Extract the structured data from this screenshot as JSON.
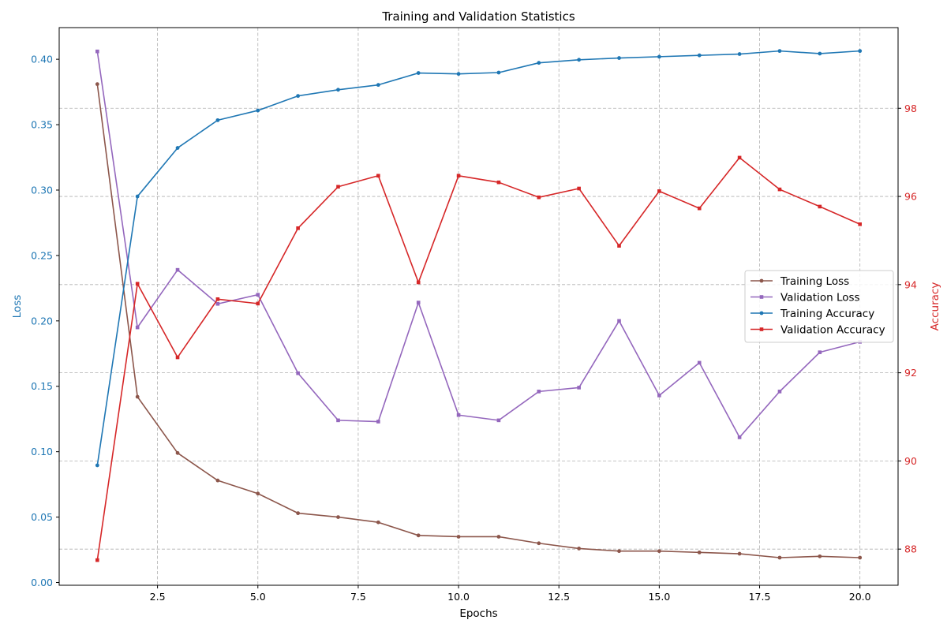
{
  "chart_data": {
    "type": "line",
    "title": "Training and Validation Statistics",
    "xlabel": "Epochs",
    "ylabel_left": "Loss",
    "ylabel_right": "Accuracy",
    "x": [
      1,
      2,
      3,
      4,
      5,
      6,
      7,
      8,
      9,
      10,
      11,
      12,
      13,
      14,
      15,
      16,
      17,
      18,
      19,
      20
    ],
    "xlim": [
      0.05,
      20.95
    ],
    "xticks": [
      2.5,
      5.0,
      7.5,
      10.0,
      12.5,
      15.0,
      17.5,
      20.0
    ],
    "ylim_left": [
      -0.0021,
      0.4242
    ],
    "yticks_left": [
      0.0,
      0.05,
      0.1,
      0.15,
      0.2,
      0.25,
      0.3,
      0.35,
      0.4
    ],
    "ylim_right": [
      87.18,
      99.83
    ],
    "yticks_right": [
      88,
      90,
      92,
      94,
      96,
      98
    ],
    "grid": true,
    "legend_position": "center-right",
    "colors": {
      "left_axis": "#1f77b4",
      "right_axis": "#d62728",
      "grid": "#b0b0b0"
    },
    "series": [
      {
        "name": "Training Loss",
        "axis": "left",
        "color": "#8c564b",
        "marker": "circle",
        "values": [
          0.381,
          0.142,
          0.099,
          0.078,
          0.068,
          0.053,
          0.05,
          0.046,
          0.036,
          0.035,
          0.035,
          0.03,
          0.026,
          0.024,
          0.024,
          0.023,
          0.022,
          0.019,
          0.02,
          0.019
        ]
      },
      {
        "name": "Validation Loss",
        "axis": "left",
        "color": "#9467bd",
        "marker": "square",
        "values": [
          0.406,
          0.195,
          0.239,
          0.213,
          0.22,
          0.16,
          0.124,
          0.123,
          0.214,
          0.128,
          0.124,
          0.146,
          0.149,
          0.2,
          0.143,
          0.168,
          0.111,
          0.146,
          0.176,
          0.184
        ]
      },
      {
        "name": "Training Accuracy",
        "axis": "right",
        "color": "#1f77b4",
        "marker": "circle",
        "values": [
          89.9,
          96.0,
          97.1,
          97.73,
          97.95,
          98.28,
          98.42,
          98.53,
          98.8,
          98.78,
          98.81,
          99.03,
          99.1,
          99.14,
          99.17,
          99.2,
          99.23,
          99.3,
          99.24,
          99.3
        ]
      },
      {
        "name": "Validation Accuracy",
        "axis": "right",
        "color": "#d62728",
        "marker": "square",
        "values": [
          87.75,
          94.02,
          92.35,
          93.67,
          93.57,
          95.28,
          96.22,
          96.47,
          94.05,
          96.47,
          96.32,
          95.98,
          96.18,
          94.88,
          96.12,
          95.73,
          96.88,
          96.16,
          95.77,
          95.37
        ]
      }
    ]
  }
}
